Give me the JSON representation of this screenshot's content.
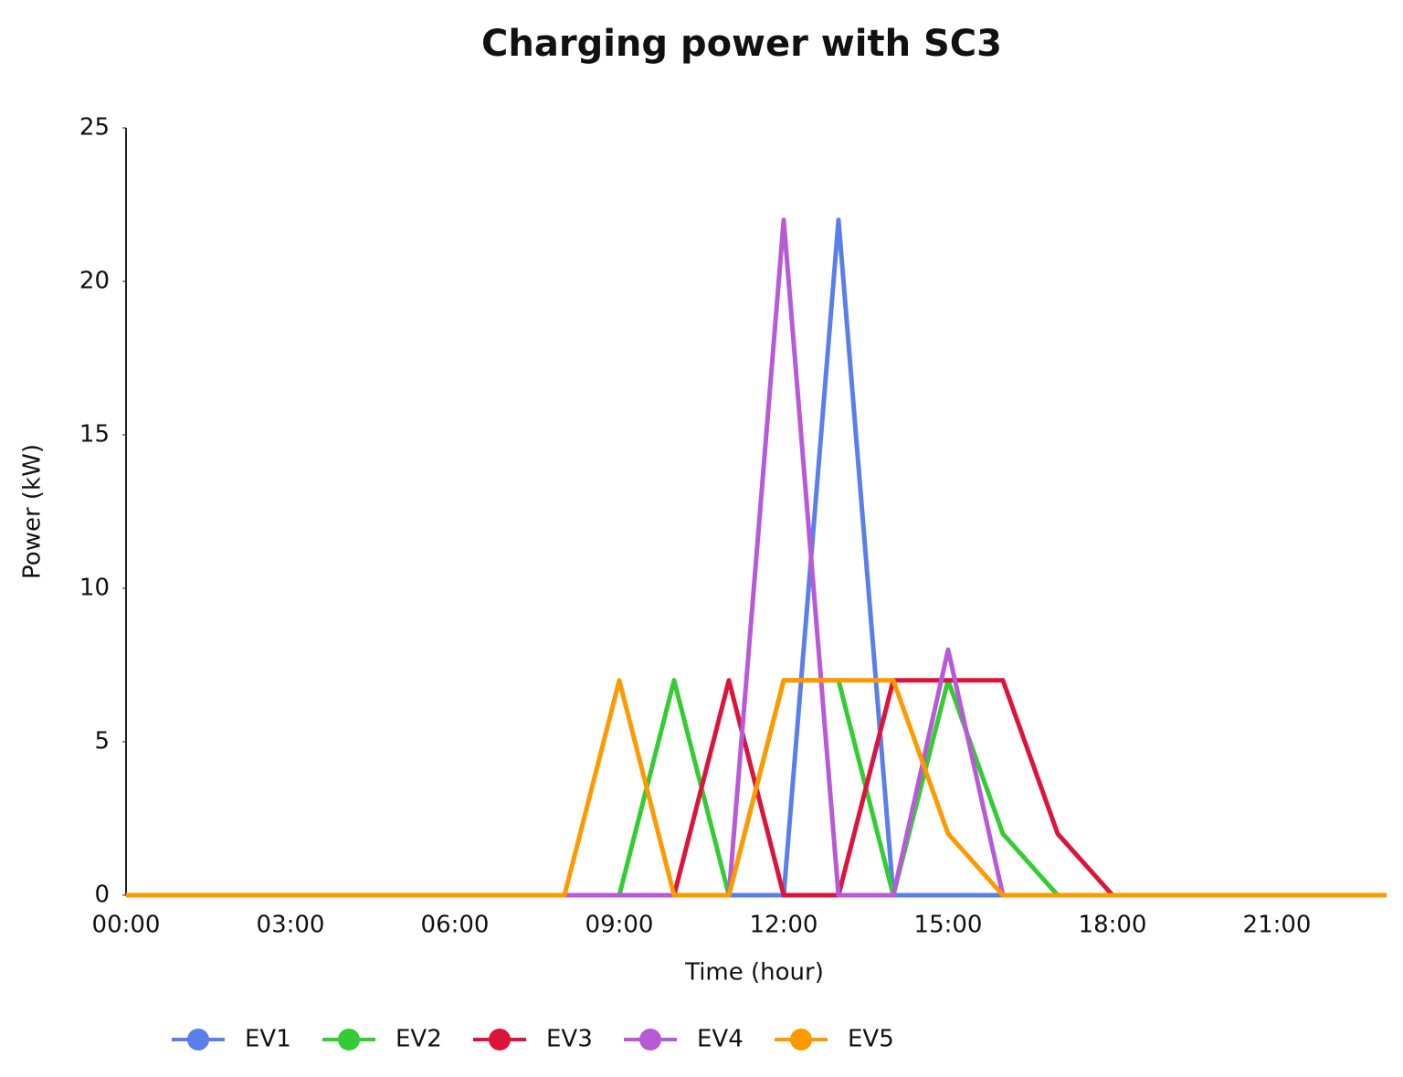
{
  "chart_data": {
    "type": "line",
    "title": "Charging power with SC3",
    "x_label": "Time (hour)",
    "y_label": "Power (kW)",
    "categories": [
      "00:00",
      null,
      null,
      "03:00",
      null,
      null,
      "06:00",
      null,
      null,
      "09:00",
      null,
      null,
      "12:00",
      null,
      null,
      "15:00",
      null,
      null,
      "18:00",
      null,
      null,
      "21:00",
      null,
      null
    ],
    "ylim": [
      0,
      25
    ],
    "yticks": [
      0,
      5,
      10,
      15,
      20,
      25
    ],
    "grid": false,
    "legend": "bottom",
    "series": [
      {
        "name": "EV1",
        "color": "#5b7fe8",
        "values": [
          0,
          0,
          0,
          0,
          0,
          0,
          0,
          0,
          0,
          0,
          0,
          0,
          0,
          22,
          0,
          0,
          0,
          0,
          0,
          0,
          0,
          0,
          0,
          0
        ]
      },
      {
        "name": "EV2",
        "color": "#33cc33",
        "values": [
          0,
          0,
          0,
          0,
          0,
          0,
          0,
          0,
          0,
          0,
          7,
          0,
          7,
          7,
          0,
          7,
          2,
          0,
          0,
          0,
          0,
          0,
          0,
          0
        ]
      },
      {
        "name": "EV3",
        "color": "#dc143c",
        "values": [
          0,
          0,
          0,
          0,
          0,
          0,
          0,
          0,
          0,
          0,
          0,
          7,
          0,
          0,
          7,
          7,
          7,
          2,
          0,
          0,
          0,
          0,
          0,
          0
        ]
      },
      {
        "name": "EV4",
        "color": "#b85ad8",
        "values": [
          0,
          0,
          0,
          0,
          0,
          0,
          0,
          0,
          0,
          0,
          0,
          0,
          22,
          0,
          0,
          8,
          0,
          0,
          0,
          0,
          0,
          0,
          0,
          0
        ]
      },
      {
        "name": "EV5",
        "color": "#ff9900",
        "values": [
          0,
          0,
          0,
          0,
          0,
          0,
          0,
          0,
          0,
          7,
          0,
          0,
          7,
          7,
          7,
          2,
          0,
          0,
          0,
          0,
          0,
          0,
          0,
          0
        ]
      }
    ]
  }
}
